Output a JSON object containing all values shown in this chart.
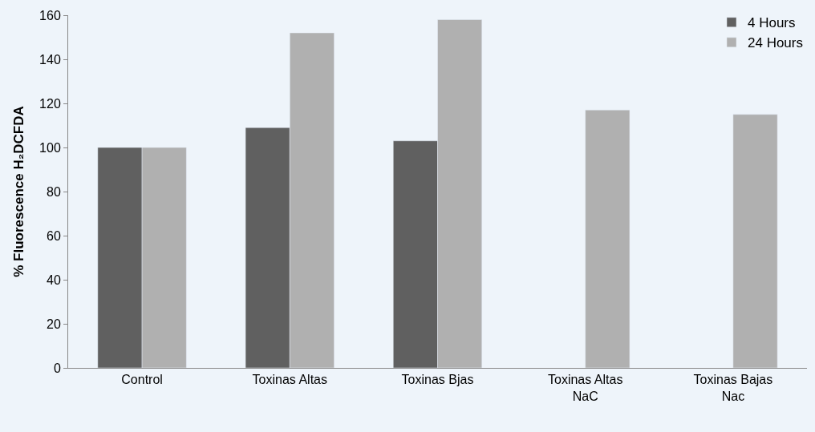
{
  "chart_data": {
    "type": "bar",
    "ylabel": "% Fluorescence H₂DCFDA",
    "categories": [
      "Control",
      "Toxinas Altas",
      "Toxinas Bjas",
      "Toxinas Altas NaC",
      "Toxinas Bajas Nac"
    ],
    "series": [
      {
        "name": "4 Hours",
        "color": "#606060",
        "values": [
          100,
          109,
          103,
          null,
          null
        ]
      },
      {
        "name": "24 Hours",
        "color": "#b0b0b0",
        "values": [
          100,
          152,
          158,
          117,
          115
        ]
      }
    ],
    "ylim": [
      0,
      160
    ],
    "yticks": [
      0,
      20,
      40,
      60,
      80,
      100,
      120,
      140,
      160
    ],
    "grid": false,
    "legend": "top right"
  }
}
